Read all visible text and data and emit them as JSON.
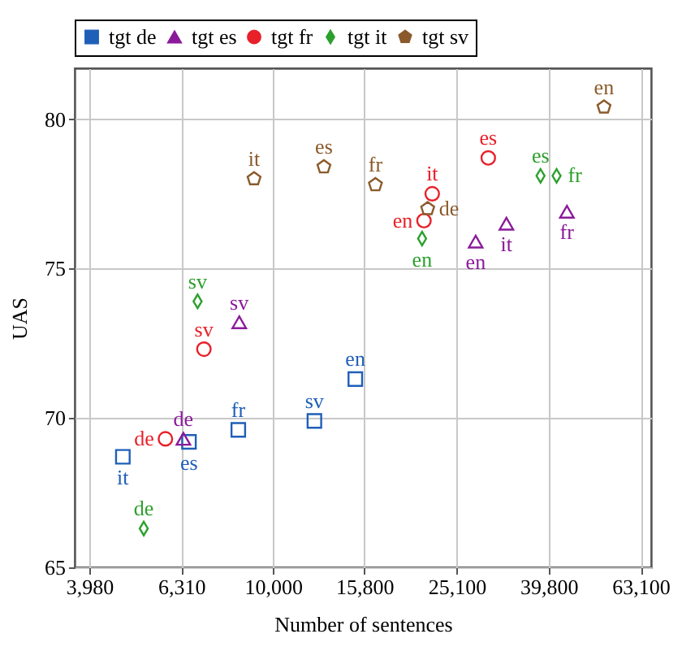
{
  "chart_data": {
    "type": "scatter",
    "xlabel": "Number of sentences",
    "ylabel": "UAS",
    "log": "x",
    "grid": true,
    "legend": "top",
    "xlim": [
      3700,
      66500
    ],
    "ylim": [
      65,
      81.7
    ],
    "xticks": [
      {
        "value": 3980,
        "label": "3,980"
      },
      {
        "value": 6310,
        "label": "6,310"
      },
      {
        "value": 10000,
        "label": "10,000"
      },
      {
        "value": 15800,
        "label": "15,800"
      },
      {
        "value": 25100,
        "label": "25,100"
      },
      {
        "value": 39800,
        "label": "39,800"
      },
      {
        "value": 63100,
        "label": "63,100"
      }
    ],
    "yticks": [
      65,
      70,
      75,
      80
    ],
    "series": [
      {
        "name": "tgt de",
        "color": "#1f5fb8",
        "marker": "square",
        "x": [
          4710,
          6560,
          8400,
          12300,
          15100
        ],
        "values": [
          68.7,
          69.2,
          69.6,
          69.9,
          71.3
        ],
        "value_labels": [
          "it",
          "es",
          "fr",
          "sv",
          "en"
        ]
      },
      {
        "name": "tgt es",
        "color": "#8b1a9b",
        "marker": "triangle",
        "x": [
          6380,
          8440,
          27600,
          32200,
          43600
        ],
        "values": [
          69.3,
          73.2,
          75.9,
          76.5,
          76.9
        ],
        "value_labels": [
          "de",
          "sv",
          "en",
          "it",
          "fr"
        ]
      },
      {
        "name": "tgt fr",
        "color": "#e8202a",
        "marker": "circle",
        "x": [
          5830,
          7070,
          21300,
          22200,
          29400
        ],
        "values": [
          69.3,
          72.3,
          76.6,
          77.5,
          78.7
        ],
        "value_labels": [
          "de",
          "sv",
          "en",
          "it",
          "es"
        ]
      },
      {
        "name": "tgt it",
        "color": "#2ca02c",
        "marker": "diamond",
        "x": [
          5230,
          6850,
          21100,
          38200,
          41400
        ],
        "values": [
          66.3,
          73.9,
          76.0,
          78.1,
          78.1
        ],
        "value_labels": [
          "de",
          "sv",
          "en",
          "es",
          "fr"
        ]
      },
      {
        "name": "tgt sv",
        "color": "#8b5a2b",
        "x": [
          9090,
          12900,
          16700,
          21700,
          52500
        ],
        "values": [
          78.0,
          78.4,
          77.8,
          77.0,
          80.4
        ],
        "value_labels": [
          "it",
          "es",
          "fr",
          "de",
          "en"
        ]
      }
    ]
  }
}
